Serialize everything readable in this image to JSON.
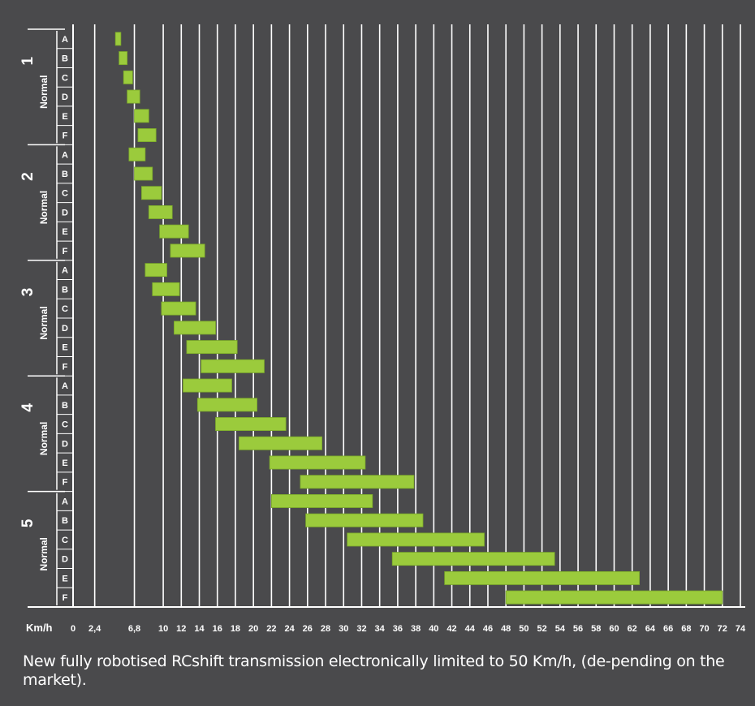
{
  "chart_data": {
    "type": "bar",
    "subtype": "range",
    "title": "",
    "xlabel": "Km/h",
    "ylabel": "",
    "xlim": [
      0,
      74
    ],
    "x_ticks": [
      0,
      2.4,
      6.8,
      10,
      12,
      14,
      16,
      18,
      20,
      22,
      24,
      26,
      28,
      30,
      32,
      34,
      36,
      38,
      40,
      42,
      44,
      46,
      48,
      50,
      52,
      54,
      56,
      58,
      60,
      62,
      64,
      66,
      68,
      70,
      72,
      74
    ],
    "x_tick_labels": [
      "0",
      "2,4",
      "6,8",
      "10",
      "12",
      "14",
      "16",
      "18",
      "20",
      "22",
      "24",
      "26",
      "28",
      "30",
      "32",
      "34",
      "36",
      "38",
      "40",
      "42",
      "44",
      "46",
      "48",
      "50",
      "52",
      "54",
      "56",
      "58",
      "60",
      "62",
      "64",
      "66",
      "68",
      "70",
      "72",
      "74"
    ],
    "grid": true,
    "groups": [
      {
        "gear": "1",
        "mode": "Normal",
        "sub_labels": [
          "A",
          "B",
          "C",
          "D",
          "E",
          "F"
        ]
      },
      {
        "gear": "2",
        "mode": "Normal",
        "sub_labels": [
          "A",
          "B",
          "C",
          "D",
          "E",
          "F"
        ]
      },
      {
        "gear": "3",
        "mode": "Normal",
        "sub_labels": [
          "A",
          "B",
          "C",
          "D",
          "E",
          "F"
        ]
      },
      {
        "gear": "4",
        "mode": "Normal",
        "sub_labels": [
          "A",
          "B",
          "C",
          "D",
          "E",
          "F"
        ]
      },
      {
        "gear": "5",
        "mode": "Normal",
        "sub_labels": [
          "A",
          "B",
          "C",
          "D",
          "E",
          "F"
        ]
      }
    ],
    "ranges": [
      {
        "gear": "1",
        "row": "A",
        "from": 4.7,
        "to": 5.3
      },
      {
        "gear": "1",
        "row": "B",
        "from": 5.1,
        "to": 6.0
      },
      {
        "gear": "1",
        "row": "C",
        "from": 5.6,
        "to": 6.6
      },
      {
        "gear": "1",
        "row": "D",
        "from": 6.0,
        "to": 7.4
      },
      {
        "gear": "1",
        "row": "E",
        "from": 6.8,
        "to": 8.4
      },
      {
        "gear": "1",
        "row": "F",
        "from": 7.2,
        "to": 9.2
      },
      {
        "gear": "2",
        "row": "A",
        "from": 6.2,
        "to": 8.0
      },
      {
        "gear": "2",
        "row": "B",
        "from": 6.8,
        "to": 8.8
      },
      {
        "gear": "2",
        "row": "C",
        "from": 7.6,
        "to": 9.8
      },
      {
        "gear": "2",
        "row": "D",
        "from": 8.4,
        "to": 11.0
      },
      {
        "gear": "2",
        "row": "E",
        "from": 9.6,
        "to": 12.8
      },
      {
        "gear": "2",
        "row": "F",
        "from": 10.8,
        "to": 14.6
      },
      {
        "gear": "3",
        "row": "A",
        "from": 8.0,
        "to": 10.4
      },
      {
        "gear": "3",
        "row": "B",
        "from": 8.8,
        "to": 11.8
      },
      {
        "gear": "3",
        "row": "C",
        "from": 9.8,
        "to": 13.6
      },
      {
        "gear": "3",
        "row": "D",
        "from": 11.2,
        "to": 15.8
      },
      {
        "gear": "3",
        "row": "E",
        "from": 12.6,
        "to": 18.2
      },
      {
        "gear": "3",
        "row": "F",
        "from": 14.2,
        "to": 21.2
      },
      {
        "gear": "4",
        "row": "A",
        "from": 12.2,
        "to": 17.6
      },
      {
        "gear": "4",
        "row": "B",
        "from": 13.8,
        "to": 20.4
      },
      {
        "gear": "4",
        "row": "C",
        "from": 15.8,
        "to": 23.6
      },
      {
        "gear": "4",
        "row": "D",
        "from": 18.4,
        "to": 27.6
      },
      {
        "gear": "4",
        "row": "E",
        "from": 21.8,
        "to": 32.4
      },
      {
        "gear": "4",
        "row": "F",
        "from": 25.2,
        "to": 37.8
      },
      {
        "gear": "5",
        "row": "A",
        "from": 22.0,
        "to": 33.2
      },
      {
        "gear": "5",
        "row": "B",
        "from": 25.8,
        "to": 38.8
      },
      {
        "gear": "5",
        "row": "C",
        "from": 30.4,
        "to": 45.6
      },
      {
        "gear": "5",
        "row": "D",
        "from": 35.4,
        "to": 53.4
      },
      {
        "gear": "5",
        "row": "E",
        "from": 41.2,
        "to": 62.8
      },
      {
        "gear": "5",
        "row": "F",
        "from": 48.0,
        "to": 72.0
      }
    ],
    "colors": {
      "background": "#4a4a4c",
      "bar": "#9bcb3c",
      "bar_edge": "#7aa82a",
      "grid": "#ffffff",
      "text": "#ffffff"
    }
  },
  "caption": "New fully robotised RCshift transmission electronically limited to 50 Km/h, (de-pending on the market)."
}
